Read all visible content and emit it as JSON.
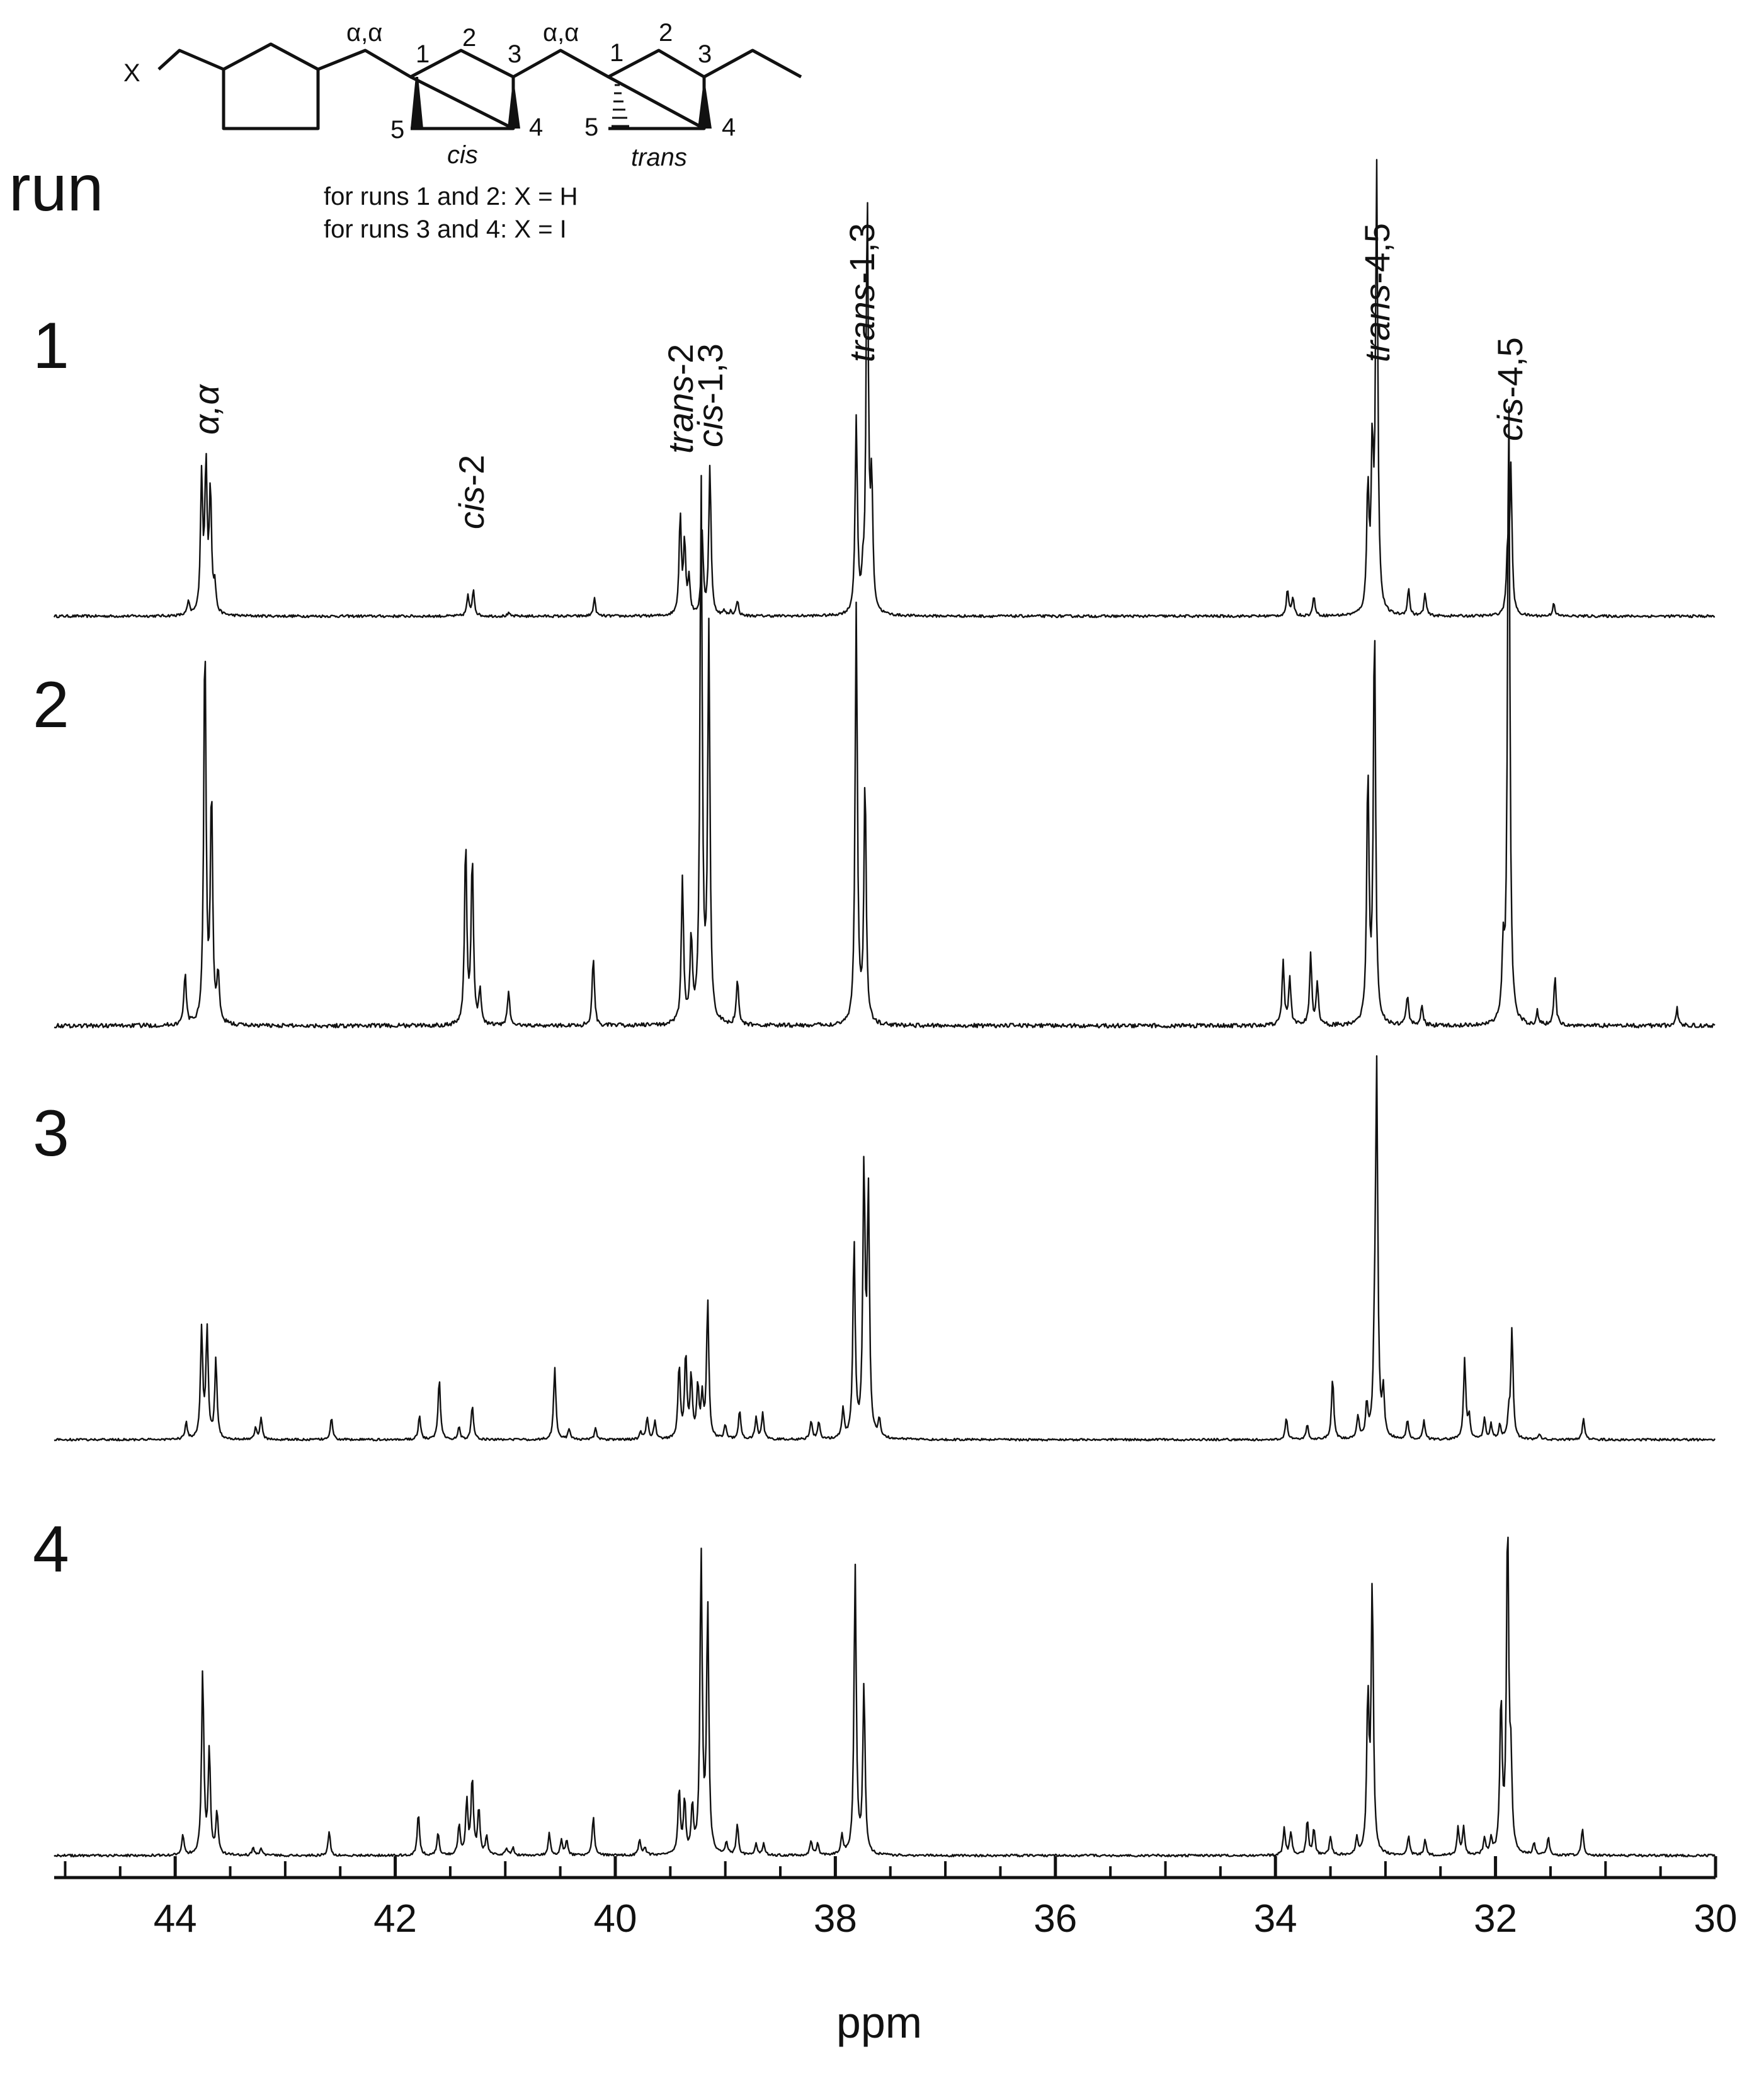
{
  "chart_data": {
    "type": "line",
    "title": "",
    "xlabel": "ppm",
    "ylabel": "",
    "xlim": [
      45.1,
      30
    ],
    "x_reversed": true,
    "grid": false,
    "legend": "none",
    "x_ticks": [
      44,
      42,
      40,
      38,
      36,
      34,
      32,
      30
    ],
    "x_tick_labels": [
      "44",
      "42",
      "40",
      "38",
      "36",
      "34",
      "32",
      "30"
    ],
    "row_heading": "run",
    "series": [
      {
        "name": "1",
        "peaks": [
          {
            "x": 43.88,
            "h": 0.03
          },
          {
            "x": 43.76,
            "h": 0.31
          },
          {
            "x": 43.72,
            "h": 0.33
          },
          {
            "x": 43.68,
            "h": 0.28
          },
          {
            "x": 43.64,
            "h": 0.06
          },
          {
            "x": 41.34,
            "h": 0.045
          },
          {
            "x": 41.29,
            "h": 0.06
          },
          {
            "x": 40.97,
            "h": 0.006
          },
          {
            "x": 40.19,
            "h": 0.04
          },
          {
            "x": 39.41,
            "h": 0.225
          },
          {
            "x": 39.37,
            "h": 0.16
          },
          {
            "x": 39.33,
            "h": 0.08
          },
          {
            "x": 39.21,
            "h": 0.18
          },
          {
            "x": 39.14,
            "h": 0.34
          },
          {
            "x": 39.01,
            "h": 0.01
          },
          {
            "x": 38.95,
            "h": 0.01
          },
          {
            "x": 38.89,
            "h": 0.035
          },
          {
            "x": 37.81,
            "h": 0.44
          },
          {
            "x": 37.75,
            "h": 0.06
          },
          {
            "x": 37.71,
            "h": 0.94
          },
          {
            "x": 37.67,
            "h": 0.28
          },
          {
            "x": 33.89,
            "h": 0.06
          },
          {
            "x": 33.84,
            "h": 0.04
          },
          {
            "x": 33.65,
            "h": 0.045
          },
          {
            "x": 33.16,
            "h": 0.28
          },
          {
            "x": 33.12,
            "h": 0.35
          },
          {
            "x": 33.08,
            "h": 1.0
          },
          {
            "x": 32.79,
            "h": 0.06
          },
          {
            "x": 32.64,
            "h": 0.05
          },
          {
            "x": 31.89,
            "h": 0.14
          },
          {
            "x": 31.86,
            "h": 0.33
          },
          {
            "x": 31.47,
            "h": 0.03
          }
        ]
      },
      {
        "name": "2",
        "peaks": [
          {
            "x": 43.91,
            "h": 0.075
          },
          {
            "x": 43.73,
            "h": 0.56
          },
          {
            "x": 43.67,
            "h": 0.33
          },
          {
            "x": 43.61,
            "h": 0.07
          },
          {
            "x": 41.36,
            "h": 0.26
          },
          {
            "x": 41.3,
            "h": 0.24
          },
          {
            "x": 41.23,
            "h": 0.05
          },
          {
            "x": 40.97,
            "h": 0.05
          },
          {
            "x": 40.2,
            "h": 0.1
          },
          {
            "x": 39.39,
            "h": 0.21
          },
          {
            "x": 39.31,
            "h": 0.12
          },
          {
            "x": 39.22,
            "h": 0.78
          },
          {
            "x": 39.15,
            "h": 0.56
          },
          {
            "x": 38.89,
            "h": 0.065
          },
          {
            "x": 37.81,
            "h": 0.6
          },
          {
            "x": 37.73,
            "h": 0.35
          },
          {
            "x": 33.93,
            "h": 0.09
          },
          {
            "x": 33.87,
            "h": 0.07
          },
          {
            "x": 33.68,
            "h": 0.1
          },
          {
            "x": 33.62,
            "h": 0.06
          },
          {
            "x": 33.16,
            "h": 0.36
          },
          {
            "x": 33.1,
            "h": 0.58
          },
          {
            "x": 32.8,
            "h": 0.045
          },
          {
            "x": 32.67,
            "h": 0.03
          },
          {
            "x": 31.93,
            "h": 0.1
          },
          {
            "x": 31.88,
            "h": 0.92
          },
          {
            "x": 31.46,
            "h": 0.07
          },
          {
            "x": 31.62,
            "h": 0.02
          },
          {
            "x": 30.35,
            "h": 0.025
          }
        ]
      },
      {
        "name": "3",
        "peaks": [
          {
            "x": 43.9,
            "h": 0.045
          },
          {
            "x": 43.76,
            "h": 0.3
          },
          {
            "x": 43.71,
            "h": 0.3
          },
          {
            "x": 43.63,
            "h": 0.22
          },
          {
            "x": 43.27,
            "h": 0.03
          },
          {
            "x": 43.22,
            "h": 0.06
          },
          {
            "x": 42.58,
            "h": 0.06
          },
          {
            "x": 41.78,
            "h": 0.065
          },
          {
            "x": 41.6,
            "h": 0.17
          },
          {
            "x": 41.42,
            "h": 0.035
          },
          {
            "x": 41.3,
            "h": 0.095
          },
          {
            "x": 40.55,
            "h": 0.2
          },
          {
            "x": 40.42,
            "h": 0.03
          },
          {
            "x": 40.18,
            "h": 0.03
          },
          {
            "x": 39.77,
            "h": 0.02
          },
          {
            "x": 39.71,
            "h": 0.06
          },
          {
            "x": 39.64,
            "h": 0.05
          },
          {
            "x": 39.42,
            "h": 0.2
          },
          {
            "x": 39.36,
            "h": 0.23
          },
          {
            "x": 39.31,
            "h": 0.17
          },
          {
            "x": 39.25,
            "h": 0.14
          },
          {
            "x": 39.21,
            "h": 0.11
          },
          {
            "x": 39.16,
            "h": 0.38
          },
          {
            "x": 39.0,
            "h": 0.04
          },
          {
            "x": 38.87,
            "h": 0.08
          },
          {
            "x": 38.72,
            "h": 0.06
          },
          {
            "x": 38.66,
            "h": 0.07
          },
          {
            "x": 38.22,
            "h": 0.05
          },
          {
            "x": 38.15,
            "h": 0.05
          },
          {
            "x": 37.93,
            "h": 0.08
          },
          {
            "x": 37.83,
            "h": 0.54
          },
          {
            "x": 37.74,
            "h": 0.73
          },
          {
            "x": 37.7,
            "h": 0.66
          },
          {
            "x": 37.6,
            "h": 0.05
          },
          {
            "x": 33.9,
            "h": 0.06
          },
          {
            "x": 33.71,
            "h": 0.04
          },
          {
            "x": 33.48,
            "h": 0.17
          },
          {
            "x": 33.25,
            "h": 0.06
          },
          {
            "x": 33.17,
            "h": 0.09
          },
          {
            "x": 33.1,
            "h": 0.18
          },
          {
            "x": 33.08,
            "h": 1.0
          },
          {
            "x": 33.02,
            "h": 0.12
          },
          {
            "x": 32.8,
            "h": 0.05
          },
          {
            "x": 32.65,
            "h": 0.05
          },
          {
            "x": 32.28,
            "h": 0.22
          },
          {
            "x": 32.24,
            "h": 0.06
          },
          {
            "x": 32.1,
            "h": 0.06
          },
          {
            "x": 32.04,
            "h": 0.04
          },
          {
            "x": 31.96,
            "h": 0.04
          },
          {
            "x": 31.88,
            "h": 0.06
          },
          {
            "x": 31.85,
            "h": 0.3
          },
          {
            "x": 31.6,
            "h": 0.015
          },
          {
            "x": 31.2,
            "h": 0.06
          }
        ]
      },
      {
        "name": "4",
        "peaks": [
          {
            "x": 43.93,
            "h": 0.055
          },
          {
            "x": 43.75,
            "h": 0.48
          },
          {
            "x": 43.69,
            "h": 0.27
          },
          {
            "x": 43.62,
            "h": 0.11
          },
          {
            "x": 43.29,
            "h": 0.02
          },
          {
            "x": 43.22,
            "h": 0.02
          },
          {
            "x": 42.6,
            "h": 0.06
          },
          {
            "x": 41.79,
            "h": 0.11
          },
          {
            "x": 41.61,
            "h": 0.06
          },
          {
            "x": 41.42,
            "h": 0.08
          },
          {
            "x": 41.35,
            "h": 0.14
          },
          {
            "x": 41.3,
            "h": 0.2
          },
          {
            "x": 41.24,
            "h": 0.12
          },
          {
            "x": 41.17,
            "h": 0.05
          },
          {
            "x": 40.99,
            "h": 0.02
          },
          {
            "x": 40.93,
            "h": 0.02
          },
          {
            "x": 40.6,
            "h": 0.06
          },
          {
            "x": 40.49,
            "h": 0.04
          },
          {
            "x": 40.44,
            "h": 0.04
          },
          {
            "x": 40.2,
            "h": 0.1
          },
          {
            "x": 39.78,
            "h": 0.04
          },
          {
            "x": 39.73,
            "h": 0.02
          },
          {
            "x": 39.42,
            "h": 0.17
          },
          {
            "x": 39.37,
            "h": 0.14
          },
          {
            "x": 39.3,
            "h": 0.12
          },
          {
            "x": 39.22,
            "h": 0.78
          },
          {
            "x": 39.16,
            "h": 0.64
          },
          {
            "x": 38.99,
            "h": 0.03
          },
          {
            "x": 38.89,
            "h": 0.08
          },
          {
            "x": 38.72,
            "h": 0.03
          },
          {
            "x": 38.65,
            "h": 0.03
          },
          {
            "x": 38.22,
            "h": 0.04
          },
          {
            "x": 38.16,
            "h": 0.03
          },
          {
            "x": 37.94,
            "h": 0.05
          },
          {
            "x": 37.82,
            "h": 0.75
          },
          {
            "x": 37.74,
            "h": 0.44
          },
          {
            "x": 33.92,
            "h": 0.07
          },
          {
            "x": 33.86,
            "h": 0.06
          },
          {
            "x": 33.71,
            "h": 0.09
          },
          {
            "x": 33.65,
            "h": 0.07
          },
          {
            "x": 33.5,
            "h": 0.05
          },
          {
            "x": 33.26,
            "h": 0.04
          },
          {
            "x": 33.16,
            "h": 0.4
          },
          {
            "x": 33.12,
            "h": 0.7
          },
          {
            "x": 32.79,
            "h": 0.05
          },
          {
            "x": 32.64,
            "h": 0.04
          },
          {
            "x": 32.34,
            "h": 0.07
          },
          {
            "x": 32.29,
            "h": 0.07
          },
          {
            "x": 32.1,
            "h": 0.04
          },
          {
            "x": 32.04,
            "h": 0.04
          },
          {
            "x": 31.95,
            "h": 0.4
          },
          {
            "x": 31.89,
            "h": 0.86
          },
          {
            "x": 31.86,
            "h": 0.2
          },
          {
            "x": 31.65,
            "h": 0.03
          },
          {
            "x": 31.52,
            "h": 0.05
          },
          {
            "x": 31.21,
            "h": 0.07
          }
        ]
      }
    ],
    "annotations": [
      {
        "id": "alpha-alpha",
        "plain": "α,α",
        "italic": "",
        "x": 43.72
      },
      {
        "id": "cis-2",
        "plain": "-2",
        "italic": "cis",
        "x": 41.31
      },
      {
        "id": "trans-2",
        "plain": "-2",
        "italic": "trans",
        "x": 39.41
      },
      {
        "id": "cis-1-3",
        "plain": "-1,3",
        "italic": "cis",
        "x": 39.14
      },
      {
        "id": "trans-1-3",
        "plain": "-1,3",
        "italic": "trans",
        "x": 37.76
      },
      {
        "id": "trans-4-5",
        "plain": "-4,5",
        "italic": "trans",
        "x": 33.08
      },
      {
        "id": "cis-4-5",
        "plain": "-4,5",
        "italic": "cis",
        "x": 31.87
      }
    ]
  },
  "structure": {
    "x_atom": "X",
    "alpha_labels": [
      "α,α",
      "α,α"
    ],
    "ring_a_locants": [
      "1",
      "2",
      "3",
      "4",
      "5"
    ],
    "ring_b_locants": [
      "1",
      "2",
      "3",
      "4",
      "5"
    ],
    "ring_a_config": "cis",
    "ring_b_config": "trans",
    "note_runs_12": "for runs 1 and 2: X = H",
    "note_runs_34": "for runs 3 and 4: X = I"
  }
}
